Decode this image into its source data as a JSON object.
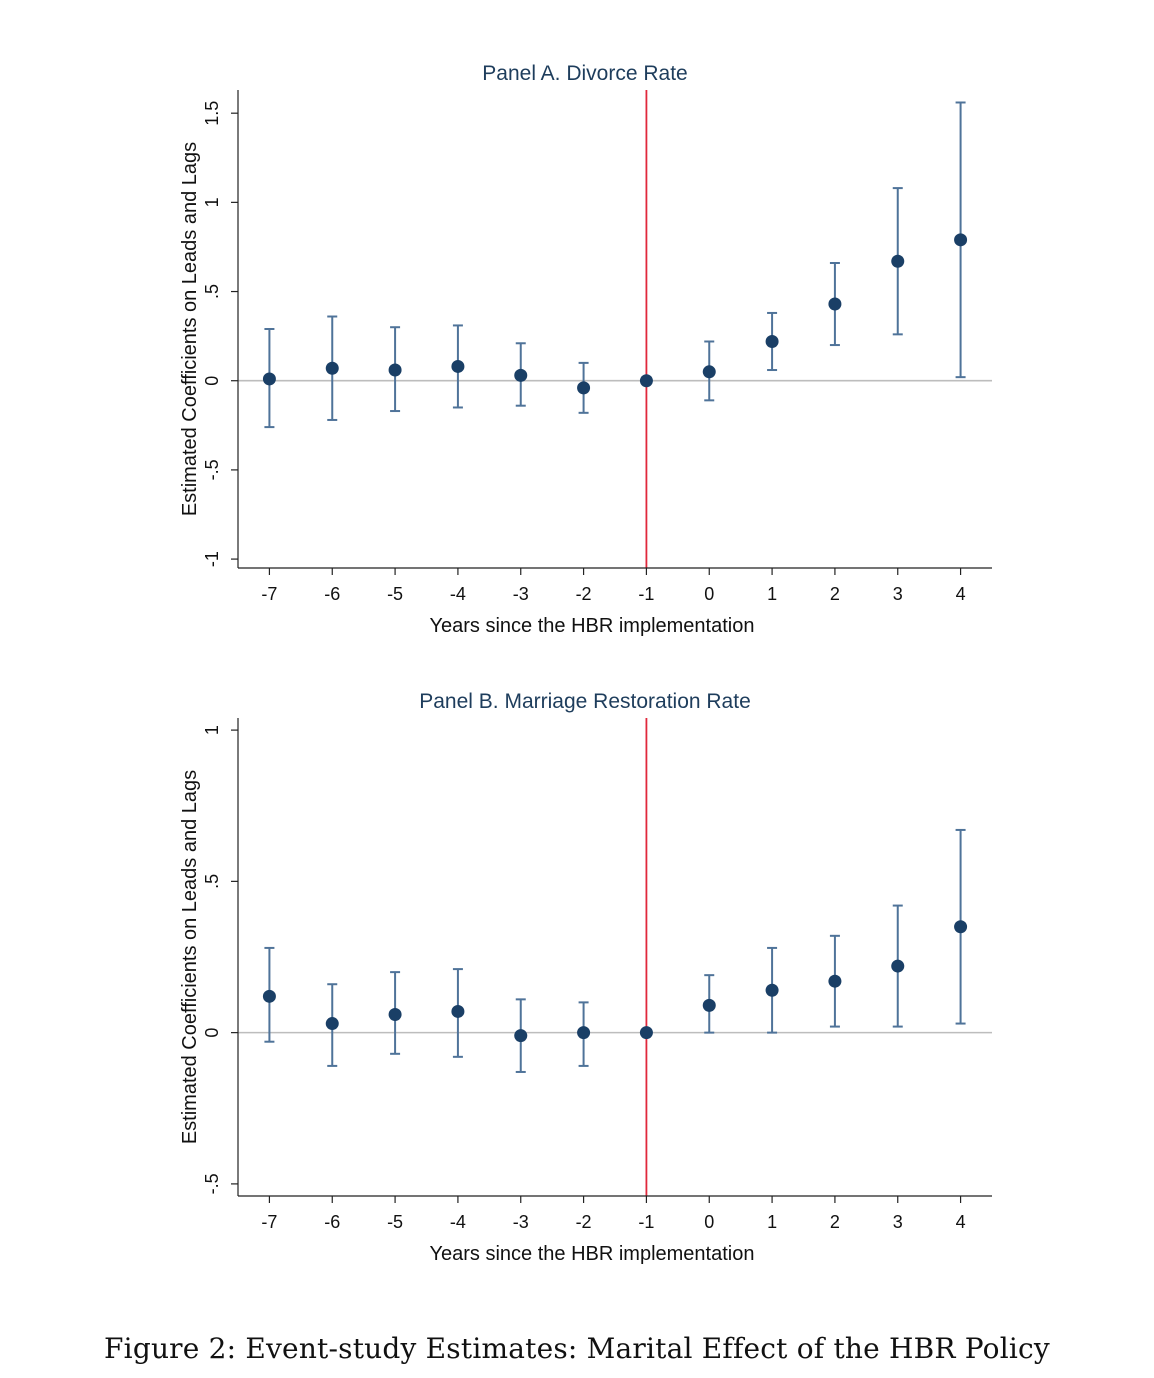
{
  "caption": "Figure 2: Event-study Estimates: Marital Effect of the HBR Policy",
  "colors": {
    "marker": "#1a3f66",
    "errorbar": "#4f7399",
    "zero_line": "#bdbdbd",
    "vline": "#e0283c",
    "title": "#1e3d5c"
  },
  "chart_data": [
    {
      "type": "scatter",
      "title": "Panel A. Divorce Rate",
      "xlabel": "Years since the HBR implementation",
      "ylabel": "Estimated Coefficients on Leads and Lags",
      "x_ticks": [
        "-7",
        "-6",
        "-5",
        "-4",
        "-3",
        "-2",
        "-1",
        "0",
        "1",
        "2",
        "3",
        "4"
      ],
      "y_ticks": [
        "-1",
        "-.5",
        "0",
        ".5",
        "1",
        "1.5"
      ],
      "y_tick_values": [
        -1,
        -0.5,
        0,
        0.5,
        1,
        1.5
      ],
      "ylim": [
        -1.05,
        1.63
      ],
      "xlim": [
        -7.5,
        4.5
      ],
      "reference_line_x": -1,
      "reference_line_y": 0,
      "points": [
        {
          "x": -7,
          "y": 0.01,
          "lo": -0.26,
          "hi": 0.29
        },
        {
          "x": -6,
          "y": 0.07,
          "lo": -0.22,
          "hi": 0.36
        },
        {
          "x": -5,
          "y": 0.06,
          "lo": -0.17,
          "hi": 0.3
        },
        {
          "x": -4,
          "y": 0.08,
          "lo": -0.15,
          "hi": 0.31
        },
        {
          "x": -3,
          "y": 0.03,
          "lo": -0.14,
          "hi": 0.21
        },
        {
          "x": -2,
          "y": -0.04,
          "lo": -0.18,
          "hi": 0.1
        },
        {
          "x": -1,
          "y": 0.0,
          "lo": 0.0,
          "hi": 0.0
        },
        {
          "x": 0,
          "y": 0.05,
          "lo": -0.11,
          "hi": 0.22
        },
        {
          "x": 1,
          "y": 0.22,
          "lo": 0.06,
          "hi": 0.38
        },
        {
          "x": 2,
          "y": 0.43,
          "lo": 0.2,
          "hi": 0.66
        },
        {
          "x": 3,
          "y": 0.67,
          "lo": 0.26,
          "hi": 1.08
        },
        {
          "x": 4,
          "y": 0.79,
          "lo": 0.02,
          "hi": 1.56
        }
      ]
    },
    {
      "type": "scatter",
      "title": "Panel B. Marriage Restoration Rate",
      "xlabel": "Years since the HBR implementation",
      "ylabel": "Estimated Coefficients on Leads and Lags",
      "x_ticks": [
        "-7",
        "-6",
        "-5",
        "-4",
        "-3",
        "-2",
        "-1",
        "0",
        "1",
        "2",
        "3",
        "4"
      ],
      "y_ticks": [
        "-.5",
        "0",
        ".5",
        "1"
      ],
      "y_tick_values": [
        -0.5,
        0,
        0.5,
        1
      ],
      "ylim": [
        -0.54,
        1.04
      ],
      "xlim": [
        -7.5,
        4.5
      ],
      "reference_line_x": -1,
      "reference_line_y": 0,
      "points": [
        {
          "x": -7,
          "y": 0.12,
          "lo": -0.03,
          "hi": 0.28
        },
        {
          "x": -6,
          "y": 0.03,
          "lo": -0.11,
          "hi": 0.16
        },
        {
          "x": -5,
          "y": 0.06,
          "lo": -0.07,
          "hi": 0.2
        },
        {
          "x": -4,
          "y": 0.07,
          "lo": -0.08,
          "hi": 0.21
        },
        {
          "x": -3,
          "y": -0.01,
          "lo": -0.13,
          "hi": 0.11
        },
        {
          "x": -2,
          "y": 0.0,
          "lo": -0.11,
          "hi": 0.1
        },
        {
          "x": -1,
          "y": 0.0,
          "lo": 0.0,
          "hi": 0.0
        },
        {
          "x": 0,
          "y": 0.09,
          "lo": 0.0,
          "hi": 0.19
        },
        {
          "x": 1,
          "y": 0.14,
          "lo": 0.0,
          "hi": 0.28
        },
        {
          "x": 2,
          "y": 0.17,
          "lo": 0.02,
          "hi": 0.32
        },
        {
          "x": 3,
          "y": 0.22,
          "lo": 0.02,
          "hi": 0.42
        },
        {
          "x": 4,
          "y": 0.35,
          "lo": 0.03,
          "hi": 0.67
        }
      ]
    }
  ]
}
